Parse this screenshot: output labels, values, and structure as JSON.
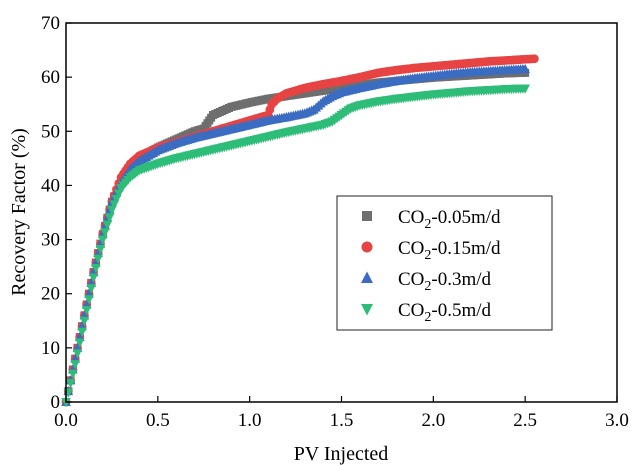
{
  "chart_data": {
    "type": "scatter",
    "title": "",
    "xlabel": "PV Injected",
    "ylabel": "Recovery Factor (%)",
    "xlim": [
      0,
      3.0
    ],
    "ylim": [
      0,
      70
    ],
    "xticks": [
      "0.0",
      "0.5",
      "1.0",
      "1.5",
      "2.0",
      "2.5",
      "3.0"
    ],
    "yticks": [
      "0",
      "10",
      "20",
      "30",
      "40",
      "50",
      "60",
      "70"
    ],
    "grid": false,
    "legend_position": "center-right",
    "series": [
      {
        "name_base": "CO",
        "name_sub": "2",
        "name_rest": "-0.05m/d",
        "color": "#6e6e6e",
        "marker": "square",
        "x": [
          0,
          0.05,
          0.1,
          0.15,
          0.2,
          0.25,
          0.3,
          0.35,
          0.4,
          0.5,
          0.6,
          0.7,
          0.75,
          0.78,
          0.8,
          0.9,
          1.0,
          1.1,
          1.2,
          1.3,
          1.4,
          1.5,
          1.6,
          1.7,
          1.8,
          1.9,
          2.0,
          2.1,
          2.2,
          2.3,
          2.4,
          2.5
        ],
        "y": [
          0,
          8,
          16,
          24,
          31,
          37,
          41,
          43.5,
          45,
          47,
          48.5,
          50,
          50.5,
          52,
          53,
          54.5,
          55.3,
          56,
          56.5,
          57,
          57.5,
          58,
          58.5,
          59,
          59.3,
          59.6,
          59.9,
          60.1,
          60.3,
          60.5,
          60.7,
          60.8
        ]
      },
      {
        "name_base": "CO",
        "name_sub": "2",
        "name_rest": "-0.15m/d",
        "color": "#e84343",
        "marker": "circle",
        "x": [
          0,
          0.05,
          0.1,
          0.15,
          0.2,
          0.25,
          0.3,
          0.35,
          0.4,
          0.5,
          0.6,
          0.7,
          0.8,
          0.9,
          1.0,
          1.05,
          1.1,
          1.12,
          1.15,
          1.2,
          1.3,
          1.4,
          1.5,
          1.6,
          1.7,
          1.8,
          1.9,
          2.0,
          2.1,
          2.2,
          2.3,
          2.4,
          2.5,
          2.55
        ],
        "y": [
          0,
          8,
          16,
          24,
          31,
          37,
          41.5,
          44,
          45.5,
          47,
          48,
          49,
          50,
          51,
          52,
          52.5,
          53,
          55,
          56,
          57,
          58,
          58.7,
          59.3,
          60,
          60.8,
          61.3,
          61.7,
          62,
          62.3,
          62.6,
          62.9,
          63.1,
          63.3,
          63.4
        ]
      },
      {
        "name_base": "CO",
        "name_sub": "2",
        "name_rest": "-0.3m/d",
        "color": "#3a6cc2",
        "marker": "triangle-up",
        "x": [
          0,
          0.05,
          0.1,
          0.15,
          0.2,
          0.25,
          0.3,
          0.35,
          0.4,
          0.5,
          0.6,
          0.7,
          0.8,
          0.9,
          1.0,
          1.1,
          1.2,
          1.3,
          1.35,
          1.4,
          1.45,
          1.5,
          1.6,
          1.7,
          1.8,
          1.9,
          2.0,
          2.1,
          2.2,
          2.3,
          2.4,
          2.5
        ],
        "y": [
          0,
          8,
          16,
          24,
          31,
          37,
          40.5,
          43,
          44.5,
          46.5,
          47.8,
          48.8,
          49.6,
          50.4,
          51.2,
          52,
          52.6,
          53.3,
          54,
          55.5,
          56.5,
          57.2,
          58,
          58.7,
          59.3,
          59.8,
          60.2,
          60.6,
          60.9,
          61.1,
          61.3,
          61.5
        ]
      },
      {
        "name_base": "CO",
        "name_sub": "2",
        "name_rest": "-0.5m/d",
        "color": "#2ebd78",
        "marker": "triangle-down",
        "x": [
          0,
          0.05,
          0.1,
          0.15,
          0.2,
          0.25,
          0.3,
          0.35,
          0.4,
          0.5,
          0.6,
          0.7,
          0.8,
          0.9,
          1.0,
          1.1,
          1.2,
          1.3,
          1.4,
          1.45,
          1.5,
          1.55,
          1.6,
          1.7,
          1.8,
          1.9,
          2.0,
          2.1,
          2.2,
          2.3,
          2.4,
          2.5
        ],
        "y": [
          0,
          7,
          15,
          23,
          30,
          35.5,
          39.5,
          41.5,
          42.8,
          44,
          45,
          45.8,
          46.6,
          47.4,
          48.2,
          49,
          49.8,
          50.5,
          51.2,
          51.8,
          53,
          54.2,
          54.8,
          55.5,
          56,
          56.4,
          56.8,
          57.1,
          57.4,
          57.6,
          57.8,
          57.9
        ]
      }
    ]
  }
}
